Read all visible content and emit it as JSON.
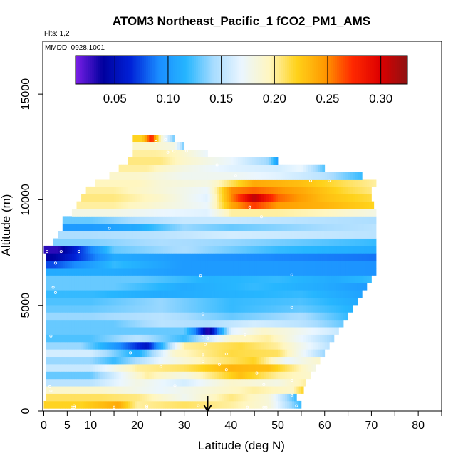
{
  "chart_data": {
    "type": "heatmap",
    "title": "ATOM3 Northeast_Pacific_1 fCO2_PM1_AMS",
    "flights_text": "Flts: 1,2",
    "date_text": "MMDD: 0928,1001",
    "xlabel": "Latitude (deg N)",
    "ylabel": "Altitude (m)",
    "xlim": [
      0,
      85
    ],
    "ylim": [
      0,
      17500
    ],
    "x_ticks": [
      0,
      5,
      10,
      20,
      30,
      40,
      50,
      60,
      70,
      80
    ],
    "x_tick_labels": [
      "0",
      "5",
      "10",
      "20",
      "30",
      "40",
      "50",
      "60",
      "70",
      "80"
    ],
    "x_minor_ticks": [
      15,
      25,
      35,
      45,
      55,
      65,
      75,
      85
    ],
    "y_ticks": [
      0,
      5000,
      10000,
      15000
    ],
    "y_tick_labels": [
      "0",
      "5000",
      "10000",
      "15000"
    ],
    "colorbar": {
      "vmin": 0.013,
      "vmax": 0.325,
      "ticks": [
        0.05,
        0.1,
        0.15,
        0.2,
        0.25,
        0.3
      ],
      "tick_labels": [
        "0.05",
        "0.10",
        "0.15",
        "0.20",
        "0.25",
        "0.30"
      ],
      "colors": [
        "#7b1fe8",
        "#00009e",
        "#0022d8",
        "#1a8cff",
        "#26b6ff",
        "#a8dcff",
        "#eaf6ff",
        "#fff6c0",
        "#ffd21a",
        "#ff9a00",
        "#ff2a00",
        "#de0000",
        "#8e1212"
      ]
    },
    "arrow_marker_latitude": 35,
    "grid": false,
    "layers": [
      {
        "alt": 300,
        "start": 0,
        "segments": [
          [
            0.22,
            8
          ],
          [
            0.24,
            16
          ],
          [
            0.2,
            20
          ],
          [
            0.21,
            30
          ],
          [
            0.2,
            40
          ],
          [
            0.185,
            48
          ],
          [
            0.12,
            55
          ]
        ]
      },
      {
        "alt": 650,
        "start": 0.5,
        "segments": [
          [
            0.21,
            12
          ],
          [
            0.205,
            20
          ],
          [
            0.175,
            30
          ],
          [
            0.205,
            40
          ],
          [
            0.185,
            48
          ],
          [
            0.12,
            54
          ]
        ]
      },
      {
        "alt": 1000,
        "start": 0.5,
        "segments": [
          [
            0.19,
            12
          ],
          [
            0.17,
            25
          ],
          [
            0.185,
            35
          ],
          [
            0.2,
            45
          ],
          [
            0.19,
            53
          ],
          [
            0.22,
            55.5
          ]
        ]
      },
      {
        "alt": 1350,
        "start": 0.5,
        "segments": [
          [
            0.15,
            10
          ],
          [
            0.18,
            20
          ],
          [
            0.16,
            30
          ],
          [
            0.19,
            40
          ],
          [
            0.18,
            50
          ],
          [
            0.2,
            56
          ]
        ]
      },
      {
        "alt": 1700,
        "start": 0.5,
        "segments": [
          [
            0.13,
            10
          ],
          [
            0.2,
            22
          ],
          [
            0.18,
            30
          ],
          [
            0.23,
            42
          ],
          [
            0.2,
            50
          ],
          [
            0.19,
            57
          ]
        ]
      },
      {
        "alt": 2050,
        "start": 0.5,
        "segments": [
          [
            0.155,
            10
          ],
          [
            0.2,
            20
          ],
          [
            0.21,
            30
          ],
          [
            0.235,
            40
          ],
          [
            0.23,
            48
          ],
          [
            0.18,
            58
          ]
        ]
      },
      {
        "alt": 2400,
        "start": 0.5,
        "segments": [
          [
            0.14,
            10
          ],
          [
            0.12,
            15
          ],
          [
            0.17,
            25
          ],
          [
            0.2,
            35
          ],
          [
            0.22,
            45
          ],
          [
            0.17,
            52
          ],
          [
            0.19,
            59
          ]
        ]
      },
      {
        "alt": 2750,
        "start": 0.5,
        "segments": [
          [
            0.16,
            10
          ],
          [
            0.11,
            20
          ],
          [
            0.19,
            28
          ],
          [
            0.215,
            40
          ],
          [
            0.21,
            50
          ],
          [
            0.14,
            60
          ]
        ]
      },
      {
        "alt": 3100,
        "start": 0.5,
        "segments": [
          [
            0.14,
            8
          ],
          [
            0.1,
            15
          ],
          [
            0.055,
            22
          ],
          [
            0.2,
            30
          ],
          [
            0.215,
            42
          ],
          [
            0.2,
            50
          ],
          [
            0.15,
            61
          ]
        ]
      },
      {
        "alt": 3450,
        "start": 0.5,
        "segments": [
          [
            0.125,
            10
          ],
          [
            0.15,
            20
          ],
          [
            0.12,
            30
          ],
          [
            0.19,
            40
          ],
          [
            0.2,
            48
          ],
          [
            0.17,
            55
          ],
          [
            0.14,
            62
          ]
        ]
      },
      {
        "alt": 3800,
        "start": 0.5,
        "segments": [
          [
            0.13,
            15
          ],
          [
            0.13,
            30
          ],
          [
            0.06,
            34
          ],
          [
            0.025,
            35
          ],
          [
            0.165,
            40
          ],
          [
            0.19,
            47
          ],
          [
            0.18,
            53
          ],
          [
            0.155,
            63
          ]
        ]
      },
      {
        "alt": 4150,
        "start": 0.5,
        "segments": [
          [
            0.13,
            15
          ],
          [
            0.15,
            25
          ],
          [
            0.145,
            35
          ],
          [
            0.16,
            45
          ],
          [
            0.15,
            55
          ],
          [
            0.13,
            64
          ]
        ]
      },
      {
        "alt": 4500,
        "start": 0.5,
        "segments": [
          [
            0.14,
            10
          ],
          [
            0.15,
            25
          ],
          [
            0.13,
            40
          ],
          [
            0.145,
            55
          ],
          [
            0.12,
            65
          ]
        ]
      },
      {
        "alt": 4850,
        "start": 0.5,
        "segments": [
          [
            0.13,
            10
          ],
          [
            0.14,
            25
          ],
          [
            0.12,
            40
          ],
          [
            0.13,
            55
          ],
          [
            0.115,
            66
          ]
        ]
      },
      {
        "alt": 5200,
        "start": 0.5,
        "segments": [
          [
            0.125,
            10
          ],
          [
            0.14,
            25
          ],
          [
            0.12,
            40
          ],
          [
            0.125,
            55
          ],
          [
            0.11,
            67
          ]
        ]
      },
      {
        "alt": 5550,
        "start": 0.5,
        "segments": [
          [
            0.12,
            10
          ],
          [
            0.11,
            25
          ],
          [
            0.115,
            40
          ],
          [
            0.12,
            55
          ],
          [
            0.105,
            68
          ]
        ]
      },
      {
        "alt": 5900,
        "start": 0.5,
        "segments": [
          [
            0.13,
            15
          ],
          [
            0.11,
            30
          ],
          [
            0.12,
            45
          ],
          [
            0.11,
            60
          ],
          [
            0.1,
            69
          ]
        ]
      },
      {
        "alt": 6250,
        "start": 0.5,
        "segments": [
          [
            0.13,
            20
          ],
          [
            0.115,
            35
          ],
          [
            0.12,
            50
          ],
          [
            0.11,
            62
          ],
          [
            0.12,
            70
          ]
        ]
      },
      {
        "alt": 6600,
        "start": 0.5,
        "segments": [
          [
            0.11,
            15
          ],
          [
            0.1,
            30
          ],
          [
            0.1,
            50
          ],
          [
            0.095,
            71
          ]
        ]
      },
      {
        "alt": 6950,
        "start": 0.5,
        "segments": [
          [
            0.075,
            2
          ],
          [
            0.12,
            15
          ],
          [
            0.1,
            30
          ],
          [
            0.1,
            50
          ],
          [
            0.095,
            71
          ]
        ]
      },
      {
        "alt": 7300,
        "start": 0.5,
        "segments": [
          [
            0.04,
            2
          ],
          [
            0.11,
            15
          ],
          [
            0.1,
            30
          ],
          [
            0.09,
            50
          ],
          [
            0.085,
            71
          ]
        ]
      },
      {
        "alt": 7650,
        "start": 0,
        "segments": [
          [
            0.03,
            3
          ],
          [
            0.13,
            15
          ],
          [
            0.145,
            30
          ],
          [
            0.12,
            50
          ],
          [
            0.11,
            71
          ]
        ]
      },
      {
        "alt": 8000,
        "start": 2,
        "segments": [
          [
            0.135,
            10
          ],
          [
            0.145,
            25
          ],
          [
            0.14,
            40
          ],
          [
            0.13,
            55
          ],
          [
            0.12,
            71
          ]
        ]
      },
      {
        "alt": 8350,
        "start": 3,
        "segments": [
          [
            0.145,
            10
          ],
          [
            0.15,
            25
          ],
          [
            0.16,
            40
          ],
          [
            0.155,
            55
          ],
          [
            0.15,
            71
          ]
        ]
      },
      {
        "alt": 8700,
        "start": 4,
        "segments": [
          [
            0.1,
            10
          ],
          [
            0.11,
            20
          ],
          [
            0.14,
            30
          ],
          [
            0.13,
            40
          ],
          [
            0.14,
            55
          ],
          [
            0.15,
            71
          ]
        ]
      },
      {
        "alt": 9050,
        "start": 4,
        "segments": [
          [
            0.13,
            10
          ],
          [
            0.145,
            20
          ],
          [
            0.155,
            30
          ],
          [
            0.155,
            40
          ],
          [
            0.15,
            55
          ],
          [
            0.145,
            71
          ]
        ]
      },
      {
        "alt": 9400,
        "start": 6,
        "segments": [
          [
            0.18,
            15
          ],
          [
            0.17,
            25
          ],
          [
            0.165,
            35
          ],
          [
            0.2,
            40
          ],
          [
            0.2,
            50
          ],
          [
            0.195,
            60
          ],
          [
            0.18,
            71
          ]
        ]
      },
      {
        "alt": 9750,
        "start": 7,
        "segments": [
          [
            0.2,
            15
          ],
          [
            0.185,
            25
          ],
          [
            0.17,
            35
          ],
          [
            0.24,
            40
          ],
          [
            0.27,
            45
          ],
          [
            0.245,
            50
          ],
          [
            0.235,
            60
          ],
          [
            0.22,
            70.5
          ]
        ]
      },
      {
        "alt": 10100,
        "start": 8,
        "segments": [
          [
            0.205,
            15
          ],
          [
            0.19,
            25
          ],
          [
            0.165,
            35
          ],
          [
            0.25,
            40
          ],
          [
            0.31,
            45
          ],
          [
            0.26,
            50
          ],
          [
            0.23,
            60
          ],
          [
            0.215,
            70
          ]
        ]
      },
      {
        "alt": 10450,
        "start": 9,
        "segments": [
          [
            0.2,
            15
          ],
          [
            0.185,
            25
          ],
          [
            0.17,
            35
          ],
          [
            0.25,
            40
          ],
          [
            0.26,
            45
          ],
          [
            0.24,
            55
          ],
          [
            0.215,
            65
          ],
          [
            0.205,
            70
          ]
        ]
      },
      {
        "alt": 10800,
        "start": 11,
        "segments": [
          [
            0.195,
            20
          ],
          [
            0.185,
            25
          ],
          [
            0.18,
            35
          ],
          [
            0.24,
            45
          ],
          [
            0.23,
            55
          ],
          [
            0.21,
            65
          ],
          [
            0.2,
            71
          ]
        ]
      },
      {
        "alt": 11150,
        "start": 14,
        "segments": [
          [
            0.19,
            20
          ],
          [
            0.175,
            30
          ],
          [
            0.175,
            40
          ],
          [
            0.165,
            50
          ],
          [
            0.15,
            60
          ],
          [
            0.12,
            68
          ]
        ]
      },
      {
        "alt": 11500,
        "start": 16,
        "segments": [
          [
            0.2,
            22
          ],
          [
            0.18,
            30
          ],
          [
            0.165,
            40
          ],
          [
            0.16,
            50
          ],
          [
            0.17,
            55
          ],
          [
            0.125,
            60
          ]
        ]
      },
      {
        "alt": 11850,
        "start": 18,
        "segments": [
          [
            0.205,
            25
          ],
          [
            0.19,
            30
          ],
          [
            0.17,
            40
          ],
          [
            0.14,
            48
          ],
          [
            0.1,
            50
          ]
        ]
      },
      {
        "alt": 12200,
        "start": 19,
        "segments": [
          [
            0.2,
            24
          ],
          [
            0.195,
            28
          ],
          [
            0.17,
            35
          ]
        ]
      },
      {
        "alt": 12550,
        "start": 19,
        "segments": [
          [
            0.19,
            23
          ],
          [
            0.18,
            28
          ],
          [
            0.13,
            30
          ]
        ]
      },
      {
        "alt": 12900,
        "start": 19,
        "segments": [
          [
            0.22,
            21
          ],
          [
            0.28,
            23
          ],
          [
            0.19,
            25
          ],
          [
            0.13,
            28
          ]
        ]
      }
    ],
    "sample_points": [
      [
        6,
        180
      ],
      [
        6.5,
        180
      ],
      [
        6.5,
        250
      ],
      [
        15,
        180
      ],
      [
        22,
        180
      ],
      [
        22,
        250
      ],
      [
        33,
        250
      ],
      [
        43.5,
        180
      ],
      [
        47,
        180
      ],
      [
        47.5,
        180
      ],
      [
        54,
        250
      ],
      [
        53,
        750
      ],
      [
        53,
        1450
      ],
      [
        47,
        1250
      ],
      [
        39,
        1950
      ],
      [
        34,
        2350
      ],
      [
        34,
        2650
      ],
      [
        39,
        2700
      ],
      [
        34.5,
        3150
      ],
      [
        35,
        3450
      ],
      [
        34,
        3500
      ],
      [
        43,
        3600
      ],
      [
        34,
        4600
      ],
      [
        53,
        4900
      ],
      [
        53,
        6450
      ],
      [
        33.5,
        6400
      ],
      [
        2,
        5850
      ],
      [
        0.7,
        7550
      ],
      [
        2.5,
        7000
      ],
      [
        3.7,
        7550
      ],
      [
        7.5,
        7550
      ],
      [
        14,
        8650
      ],
      [
        44,
        9650
      ],
      [
        46.5,
        9200
      ],
      [
        24,
        12750
      ],
      [
        26,
        12850
      ],
      [
        26.5,
        12250
      ],
      [
        27.8,
        12300
      ],
      [
        30.5,
        12300
      ],
      [
        37,
        11650
      ],
      [
        61,
        10900
      ],
      [
        41,
        11150
      ],
      [
        57,
        10900
      ],
      [
        1.3,
        1150
      ],
      [
        18.5,
        2750
      ],
      [
        37.5,
        2200
      ],
      [
        1.5,
        3550
      ],
      [
        1.5,
        950
      ],
      [
        2.5,
        5600
      ],
      [
        60.5,
        1500
      ],
      [
        58,
        1400
      ],
      [
        45.5,
        1800
      ],
      [
        28,
        1200
      ],
      [
        25,
        2100
      ]
    ]
  }
}
